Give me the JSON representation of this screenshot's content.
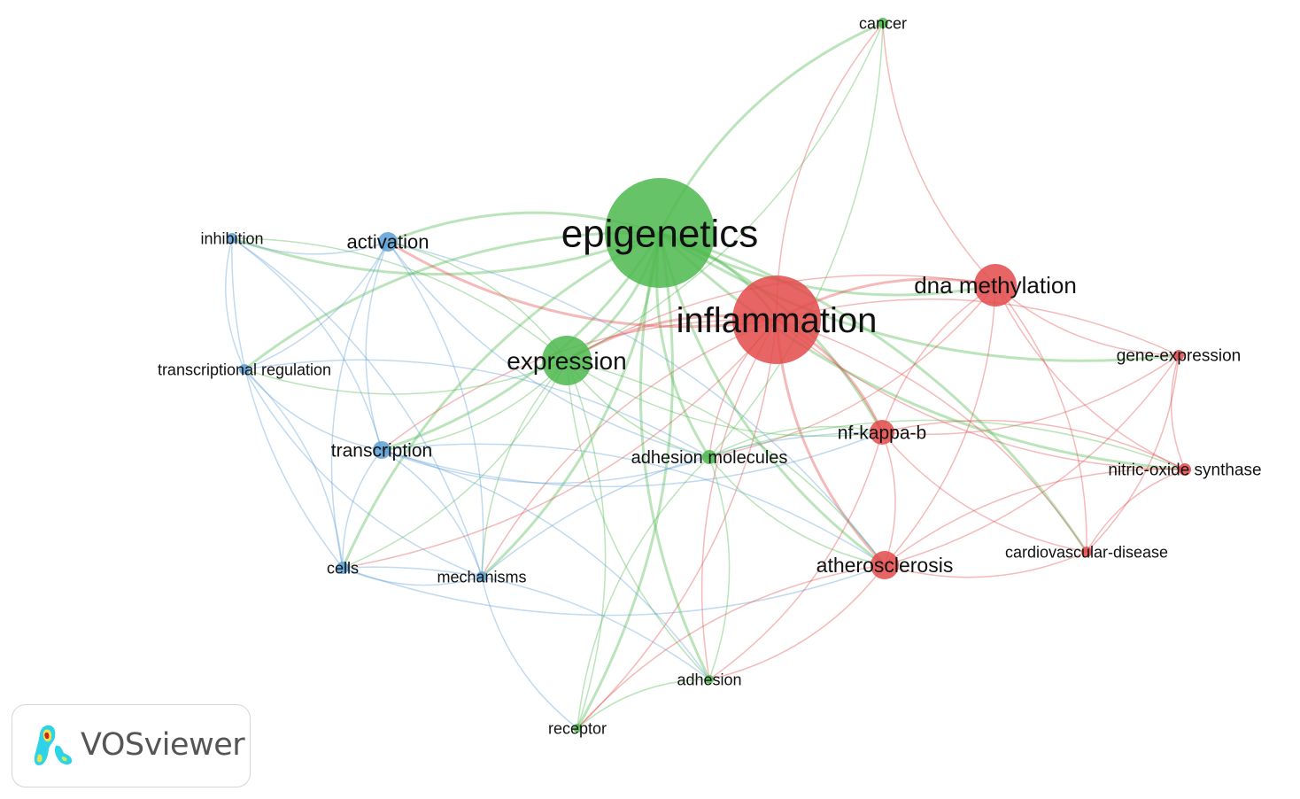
{
  "clusters": {
    "green": "#4cb84c",
    "red": "#e34a4a",
    "blue": "#5b9fd6"
  },
  "nodes": [
    {
      "id": "epigenetics",
      "label": "epigenetics",
      "cluster": "green"
    },
    {
      "id": "inflammation",
      "label": "inflammation",
      "cluster": "red"
    },
    {
      "id": "dna-methylation",
      "label": "dna methylation",
      "cluster": "red"
    },
    {
      "id": "expression",
      "label": "expression",
      "cluster": "green"
    },
    {
      "id": "activation",
      "label": "activation",
      "cluster": "blue"
    },
    {
      "id": "inhibition",
      "label": "inhibition",
      "cluster": "blue"
    },
    {
      "id": "transcriptional-regulation",
      "label": "transcriptional regulation",
      "cluster": "blue"
    },
    {
      "id": "transcription",
      "label": "transcription",
      "cluster": "blue"
    },
    {
      "id": "cells",
      "label": "cells",
      "cluster": "blue"
    },
    {
      "id": "mechanisms",
      "label": "mechanisms",
      "cluster": "blue"
    },
    {
      "id": "adhesion-molecules",
      "label": "adhesion molecules",
      "cluster": "green"
    },
    {
      "id": "nf-kappa-b",
      "label": "nf-kappa-b",
      "cluster": "red"
    },
    {
      "id": "atherosclerosis",
      "label": "atherosclerosis",
      "cluster": "red"
    },
    {
      "id": "cardiovascular-disease",
      "label": "cardiovascular-disease",
      "cluster": "red"
    },
    {
      "id": "nitric-oxide-synthase",
      "label": "nitric-oxide synthase",
      "cluster": "red"
    },
    {
      "id": "gene-expression",
      "label": "gene-expression",
      "cluster": "red"
    },
    {
      "id": "cancer",
      "label": "cancer",
      "cluster": "green"
    },
    {
      "id": "adhesion",
      "label": "adhesion",
      "cluster": "green"
    },
    {
      "id": "receptor",
      "label": "receptor",
      "cluster": "green"
    }
  ],
  "edges": [
    [
      "epigenetics",
      "inflammation"
    ],
    [
      "epigenetics",
      "dna-methylation"
    ],
    [
      "epigenetics",
      "expression"
    ],
    [
      "epigenetics",
      "activation"
    ],
    [
      "epigenetics",
      "inhibition"
    ],
    [
      "epigenetics",
      "transcriptional-regulation"
    ],
    [
      "epigenetics",
      "transcription"
    ],
    [
      "epigenetics",
      "cells"
    ],
    [
      "epigenetics",
      "mechanisms"
    ],
    [
      "epigenetics",
      "adhesion-molecules"
    ],
    [
      "epigenetics",
      "nf-kappa-b"
    ],
    [
      "epigenetics",
      "atherosclerosis"
    ],
    [
      "epigenetics",
      "cancer"
    ],
    [
      "epigenetics",
      "adhesion"
    ],
    [
      "epigenetics",
      "receptor"
    ],
    [
      "epigenetics",
      "gene-expression"
    ],
    [
      "epigenetics",
      "cardiovascular-disease"
    ],
    [
      "epigenetics",
      "nitric-oxide-synthase"
    ],
    [
      "inflammation",
      "dna-methylation"
    ],
    [
      "inflammation",
      "expression"
    ],
    [
      "inflammation",
      "activation"
    ],
    [
      "inflammation",
      "transcription"
    ],
    [
      "inflammation",
      "nf-kappa-b"
    ],
    [
      "inflammation",
      "atherosclerosis"
    ],
    [
      "inflammation",
      "cardiovascular-disease"
    ],
    [
      "inflammation",
      "nitric-oxide-synthase"
    ],
    [
      "inflammation",
      "gene-expression"
    ],
    [
      "inflammation",
      "adhesion-molecules"
    ],
    [
      "inflammation",
      "cancer"
    ],
    [
      "inflammation",
      "mechanisms"
    ],
    [
      "inflammation",
      "cells"
    ],
    [
      "inflammation",
      "adhesion"
    ],
    [
      "inflammation",
      "receptor"
    ],
    [
      "dna-methylation",
      "gene-expression"
    ],
    [
      "dna-methylation",
      "atherosclerosis"
    ],
    [
      "dna-methylation",
      "nf-kappa-b"
    ],
    [
      "dna-methylation",
      "cardiovascular-disease"
    ],
    [
      "dna-methylation",
      "nitric-oxide-synthase"
    ],
    [
      "dna-methylation",
      "cancer"
    ],
    [
      "dna-methylation",
      "expression"
    ],
    [
      "dna-methylation",
      "adhesion-molecules"
    ],
    [
      "expression",
      "activation"
    ],
    [
      "expression",
      "transcription"
    ],
    [
      "expression",
      "adhesion-molecules"
    ],
    [
      "expression",
      "atherosclerosis"
    ],
    [
      "expression",
      "nf-kappa-b"
    ],
    [
      "expression",
      "receptor"
    ],
    [
      "expression",
      "adhesion"
    ],
    [
      "expression",
      "cells"
    ],
    [
      "expression",
      "inhibition"
    ],
    [
      "expression",
      "transcriptional-regulation"
    ],
    [
      "expression",
      "mechanisms"
    ],
    [
      "activation",
      "inhibition"
    ],
    [
      "activation",
      "transcription"
    ],
    [
      "activation",
      "transcriptional-regulation"
    ],
    [
      "activation",
      "cells"
    ],
    [
      "activation",
      "mechanisms"
    ],
    [
      "activation",
      "adhesion-molecules"
    ],
    [
      "activation",
      "atherosclerosis"
    ],
    [
      "inhibition",
      "transcriptional-regulation"
    ],
    [
      "inhibition",
      "transcription"
    ],
    [
      "inhibition",
      "cells"
    ],
    [
      "inhibition",
      "mechanisms"
    ],
    [
      "transcriptional-regulation",
      "transcription"
    ],
    [
      "transcriptional-regulation",
      "cells"
    ],
    [
      "transcriptional-regulation",
      "mechanisms"
    ],
    [
      "transcriptional-regulation",
      "adhesion-molecules"
    ],
    [
      "transcription",
      "cells"
    ],
    [
      "transcription",
      "mechanisms"
    ],
    [
      "transcription",
      "adhesion-molecules"
    ],
    [
      "transcription",
      "atherosclerosis"
    ],
    [
      "transcription",
      "nf-kappa-b"
    ],
    [
      "transcription",
      "adhesion"
    ],
    [
      "cells",
      "mechanisms"
    ],
    [
      "cells",
      "adhesion"
    ],
    [
      "cells",
      "atherosclerosis"
    ],
    [
      "mechanisms",
      "nf-kappa-b"
    ],
    [
      "mechanisms",
      "receptor"
    ],
    [
      "adhesion-molecules",
      "nf-kappa-b"
    ],
    [
      "adhesion-molecules",
      "atherosclerosis"
    ],
    [
      "adhesion-molecules",
      "adhesion"
    ],
    [
      "adhesion-molecules",
      "receptor"
    ],
    [
      "adhesion-molecules",
      "nitric-oxide-synthase"
    ],
    [
      "adhesion-molecules",
      "cancer"
    ],
    [
      "nf-kappa-b",
      "atherosclerosis"
    ],
    [
      "nf-kappa-b",
      "gene-expression"
    ],
    [
      "nf-kappa-b",
      "nitric-oxide-synthase"
    ],
    [
      "nf-kappa-b",
      "cardiovascular-disease"
    ],
    [
      "nf-kappa-b",
      "adhesion"
    ],
    [
      "atherosclerosis",
      "cardiovascular-disease"
    ],
    [
      "atherosclerosis",
      "nitric-oxide-synthase"
    ],
    [
      "atherosclerosis",
      "gene-expression"
    ],
    [
      "atherosclerosis",
      "adhesion"
    ],
    [
      "atherosclerosis",
      "receptor"
    ],
    [
      "cardiovascular-disease",
      "nitric-oxide-synthase"
    ],
    [
      "cardiovascular-disease",
      "gene-expression"
    ],
    [
      "nitric-oxide-synthase",
      "gene-expression"
    ],
    [
      "adhesion",
      "receptor"
    ],
    [
      "cancer",
      "expression"
    ]
  ],
  "logo": {
    "text": "VOSviewer"
  }
}
